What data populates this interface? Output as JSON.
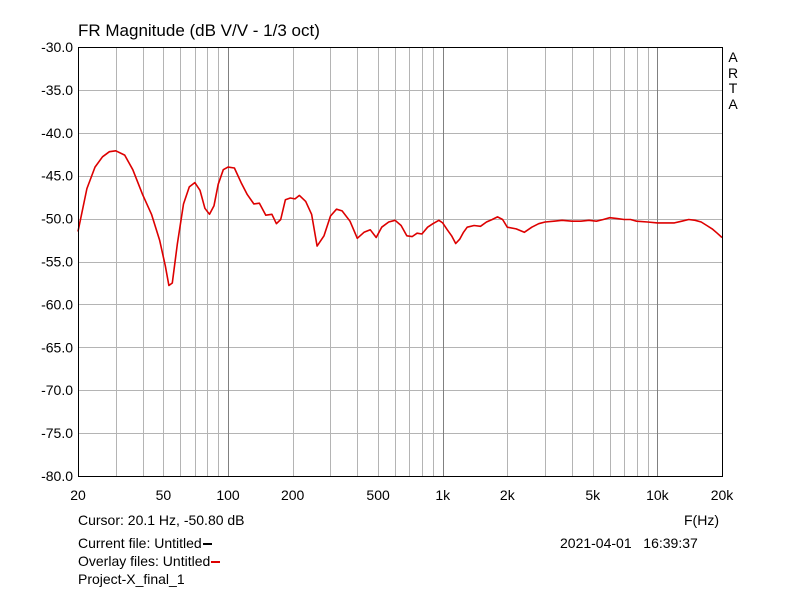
{
  "chart_data": {
    "type": "line",
    "title": "FR Magnitude (dB V/V - 1/3 oct)",
    "xlabel": "F(Hz)",
    "ylabel": "",
    "x_scale": "log",
    "xlim": [
      20,
      20000
    ],
    "ylim": [
      -80,
      -30
    ],
    "grid": true,
    "y_ticks": [
      -30,
      -35,
      -40,
      -45,
      -50,
      -55,
      -60,
      -65,
      -70,
      -75,
      -80
    ],
    "y_tick_labels": [
      "-30.0",
      "-35.0",
      "-40.0",
      "-45.0",
      "-50.0",
      "-55.0",
      "-60.0",
      "-65.0",
      "-70.0",
      "-75.0",
      "-80.0"
    ],
    "x_major_ticks": [
      20,
      50,
      100,
      200,
      500,
      1000,
      2000,
      5000,
      10000,
      20000
    ],
    "x_tick_labels": [
      "20",
      "50",
      "100",
      "200",
      "500",
      "1k",
      "2k",
      "5k",
      "10k",
      "20k"
    ],
    "x_grid_lines": [
      20,
      30,
      40,
      50,
      60,
      70,
      80,
      90,
      100,
      200,
      300,
      400,
      500,
      600,
      700,
      800,
      900,
      1000,
      2000,
      3000,
      4000,
      5000,
      6000,
      7000,
      8000,
      9000,
      10000,
      20000
    ],
    "x_major_grid": [
      100,
      1000,
      10000
    ],
    "series": [
      {
        "name": "Overlay",
        "color": "#dd0000",
        "x": [
          20,
          22,
          24,
          26,
          28,
          30,
          33,
          36,
          40,
          44,
          48,
          51,
          53,
          55,
          58,
          62,
          66,
          70,
          74,
          78,
          82,
          86,
          90,
          95,
          100,
          107,
          115,
          123,
          132,
          140,
          150,
          160,
          168,
          176,
          185,
          195,
          205,
          215,
          230,
          245,
          260,
          280,
          300,
          320,
          340,
          370,
          400,
          430,
          460,
          490,
          520,
          560,
          600,
          640,
          680,
          720,
          760,
          800,
          850,
          900,
          960,
          1000,
          1050,
          1100,
          1150,
          1200,
          1250,
          1300,
          1400,
          1500,
          1600,
          1700,
          1800,
          1900,
          2000,
          2200,
          2400,
          2600,
          2800,
          3000,
          3300,
          3600,
          4000,
          4400,
          4800,
          5200,
          5600,
          6000,
          6500,
          7000,
          7500,
          8000,
          9000,
          10000,
          11000,
          12000,
          13000,
          14000,
          15000,
          16000,
          17000,
          18000,
          19000,
          20000
        ],
        "y": [
          -51.5,
          -46.5,
          -44.0,
          -42.8,
          -42.2,
          -42.1,
          -42.6,
          -44.3,
          -47.2,
          -49.5,
          -52.5,
          -55.5,
          -57.8,
          -57.5,
          -53.0,
          -48.3,
          -46.3,
          -45.8,
          -46.7,
          -48.8,
          -49.5,
          -48.5,
          -46.0,
          -44.3,
          -44.0,
          -44.1,
          -45.8,
          -47.2,
          -48.3,
          -48.2,
          -49.6,
          -49.5,
          -50.6,
          -50.1,
          -47.8,
          -47.6,
          -47.7,
          -47.3,
          -48.0,
          -49.5,
          -53.2,
          -52.0,
          -49.7,
          -48.9,
          -49.1,
          -50.3,
          -52.3,
          -51.6,
          -51.3,
          -52.2,
          -51.0,
          -50.4,
          -50.2,
          -50.8,
          -52.0,
          -52.1,
          -51.7,
          -51.8,
          -51.0,
          -50.6,
          -50.2,
          -50.5,
          -51.3,
          -52.0,
          -52.9,
          -52.4,
          -51.6,
          -51.0,
          -50.8,
          -50.9,
          -50.4,
          -50.1,
          -49.8,
          -50.1,
          -51.0,
          -51.2,
          -51.6,
          -51.0,
          -50.6,
          -50.4,
          -50.3,
          -50.2,
          -50.3,
          -50.3,
          -50.2,
          -50.3,
          -50.1,
          -49.9,
          -50.0,
          -50.1,
          -50.1,
          -50.3,
          -50.4,
          -50.5,
          -50.5,
          -50.5,
          -50.3,
          -50.1,
          -50.2,
          -50.4,
          -50.8,
          -51.2,
          -51.7,
          -52.2
        ]
      }
    ]
  },
  "side_label": [
    "A",
    "R",
    "T",
    "A"
  ],
  "cursor_text": "Cursor: 20.1 Hz, -50.80 dB",
  "freq_unit": "F(Hz)",
  "current_file_text": "Current file: Untitled",
  "overlay_files_text": "Overlay files: Untitled",
  "project_name": "Project-X_final_1",
  "datetime_text": "2021-04-01   16:39:37",
  "colors": {
    "current_file_swatch": "#000000",
    "overlay_swatch": "#dd0000",
    "grid_minor": "#b4b4b4",
    "grid_major": "#808080"
  }
}
